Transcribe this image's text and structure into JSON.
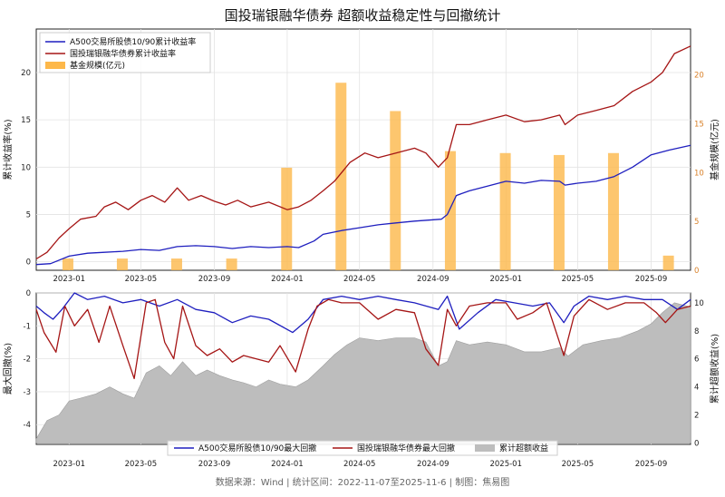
{
  "title": "国投瑞银融华债券 超额收益稳定性与回撤统计",
  "footer": "数据来源：Wind | 统计区间：2022-11-07至2025-11-6 | 制图：焦易图",
  "colors": {
    "blue": "#1f1fbf",
    "red": "#a51515",
    "orange": "#fdb84a",
    "gray": "#bdbdbd"
  },
  "chart_data": [
    {
      "type": "line",
      "panel": "top",
      "ylabel_left": "累计收益率(%)",
      "ylabel_right": "基金规模(亿元)",
      "xlim": [
        "2022-11-07",
        "2025-11-06"
      ],
      "x_ticks": [
        "2023-01",
        "2023-05",
        "2023-09",
        "2024-01",
        "2024-05",
        "2024-09",
        "2025-01",
        "2025-05",
        "2025-09"
      ],
      "ylim_left": [
        -0.9,
        24.6
      ],
      "yticks_left": [
        0,
        5,
        10,
        15,
        20
      ],
      "ylim_right": [
        0,
        24.7
      ],
      "yticks_right": [
        0,
        5,
        10,
        15,
        20
      ],
      "grid": true,
      "legend_position": "top-left",
      "series": [
        {
          "name": "A500交易所股债10/90累计收益率",
          "color": "#1f1fbf",
          "x": [
            "2022-11-07",
            "2022-12-01",
            "2023-01-01",
            "2023-02-01",
            "2023-03-01",
            "2023-04-01",
            "2023-05-01",
            "2023-06-01",
            "2023-07-01",
            "2023-08-01",
            "2023-09-01",
            "2023-10-01",
            "2023-11-01",
            "2023-12-01",
            "2024-01-01",
            "2024-01-20",
            "2024-02-15",
            "2024-03-01",
            "2024-04-01",
            "2024-05-01",
            "2024-06-01",
            "2024-07-01",
            "2024-08-01",
            "2024-09-15",
            "2024-09-25",
            "2024-10-10",
            "2024-11-01",
            "2024-12-01",
            "2025-01-01",
            "2025-02-01",
            "2025-03-01",
            "2025-04-01",
            "2025-04-10",
            "2025-05-01",
            "2025-06-01",
            "2025-07-01",
            "2025-08-01",
            "2025-09-01",
            "2025-10-01",
            "2025-11-06"
          ],
          "y": [
            -0.3,
            -0.2,
            0.6,
            0.9,
            1.0,
            1.1,
            1.3,
            1.2,
            1.6,
            1.7,
            1.6,
            1.4,
            1.6,
            1.5,
            1.6,
            1.5,
            2.2,
            2.9,
            3.3,
            3.6,
            3.9,
            4.1,
            4.3,
            4.5,
            5.0,
            7.0,
            7.5,
            8.0,
            8.5,
            8.3,
            8.6,
            8.5,
            8.1,
            8.3,
            8.5,
            9.0,
            10.0,
            11.3,
            11.8,
            12.3
          ]
        },
        {
          "name": "国投瑞银融华债券累计收益率",
          "color": "#a51515",
          "x": [
            "2022-11-07",
            "2022-11-25",
            "2022-12-15",
            "2023-01-01",
            "2023-01-20",
            "2023-02-15",
            "2023-03-01",
            "2023-03-20",
            "2023-04-10",
            "2023-05-01",
            "2023-05-20",
            "2023-06-10",
            "2023-07-01",
            "2023-07-20",
            "2023-08-10",
            "2023-09-01",
            "2023-09-20",
            "2023-10-10",
            "2023-11-01",
            "2023-12-01",
            "2024-01-01",
            "2024-01-20",
            "2024-02-10",
            "2024-03-01",
            "2024-03-20",
            "2024-04-15",
            "2024-05-10",
            "2024-06-01",
            "2024-07-01",
            "2024-08-01",
            "2024-08-20",
            "2024-09-10",
            "2024-09-25",
            "2024-10-10",
            "2024-11-01",
            "2024-12-01",
            "2025-01-01",
            "2025-02-01",
            "2025-03-01",
            "2025-04-01",
            "2025-04-10",
            "2025-05-01",
            "2025-06-01",
            "2025-07-01",
            "2025-08-01",
            "2025-09-01",
            "2025-09-20",
            "2025-10-10",
            "2025-11-06"
          ],
          "y": [
            0.3,
            1.0,
            2.5,
            3.5,
            4.5,
            4.8,
            5.8,
            6.3,
            5.5,
            6.5,
            7.0,
            6.3,
            7.8,
            6.5,
            7.0,
            6.4,
            6.0,
            6.5,
            5.8,
            6.3,
            5.5,
            5.8,
            6.5,
            7.5,
            8.5,
            10.5,
            11.5,
            11.0,
            11.5,
            12.0,
            11.5,
            10.0,
            11.0,
            14.5,
            14.5,
            15.0,
            15.5,
            14.8,
            15.0,
            15.5,
            14.5,
            15.5,
            16.0,
            16.5,
            18.0,
            19.0,
            20.0,
            22.0,
            22.8
          ]
        }
      ],
      "bar_series": {
        "name": "基金规模(亿元)",
        "color": "#fdb84a",
        "x": [
          "2022-12-30",
          "2023-03-31",
          "2023-06-30",
          "2023-09-30",
          "2023-12-31",
          "2024-03-31",
          "2024-06-30",
          "2024-09-30",
          "2024-12-31",
          "2025-03-31",
          "2025-06-30",
          "2025-09-30"
        ],
        "values": [
          1.2,
          1.2,
          1.2,
          1.2,
          10.5,
          19.2,
          16.3,
          12.2,
          12.0,
          11.8,
          12.0,
          1.5
        ]
      }
    },
    {
      "type": "line",
      "panel": "bottom",
      "ylabel_left": "最大回撤(%)",
      "ylabel_right": "累计超额收益(%)",
      "xlim": [
        "2022-11-07",
        "2025-11-06"
      ],
      "x_ticks": [
        "2023-01",
        "2023-05",
        "2023-09",
        "2024-01",
        "2024-05",
        "2024-09",
        "2025-01",
        "2025-05",
        "2025-09"
      ],
      "ylim_left": [
        -4.6,
        0
      ],
      "yticks_left": [
        0,
        -1,
        -2,
        -3,
        -4
      ],
      "ylim_right": [
        -0.1,
        10.7
      ],
      "yticks_right": [
        0,
        2,
        4,
        6,
        8,
        10
      ],
      "grid": true,
      "legend_position": "bottom-center",
      "series": [
        {
          "name": "A500交易所股债10/90最大回撤",
          "color": "#1f1fbf",
          "x": [
            "2022-11-07",
            "2022-11-20",
            "2022-12-05",
            "2022-12-20",
            "2023-01-10",
            "2023-02-01",
            "2023-03-01",
            "2023-04-01",
            "2023-05-01",
            "2023-06-01",
            "2023-07-01",
            "2023-08-01",
            "2023-09-01",
            "2023-10-01",
            "2023-11-01",
            "2023-12-01",
            "2024-01-10",
            "2024-02-05",
            "2024-03-01",
            "2024-04-01",
            "2024-05-01",
            "2024-06-01",
            "2024-07-01",
            "2024-08-01",
            "2024-09-10",
            "2024-09-25",
            "2024-10-15",
            "2024-11-15",
            "2024-12-15",
            "2025-01-15",
            "2025-02-15",
            "2025-03-15",
            "2025-04-08",
            "2025-04-25",
            "2025-05-20",
            "2025-06-20",
            "2025-07-20",
            "2025-08-20",
            "2025-09-20",
            "2025-10-15",
            "2025-11-06"
          ],
          "y": [
            -0.4,
            -0.6,
            -0.8,
            -0.5,
            0,
            -0.2,
            -0.1,
            -0.3,
            -0.2,
            -0.4,
            -0.2,
            -0.5,
            -0.6,
            -0.9,
            -0.7,
            -0.8,
            -1.2,
            -0.8,
            -0.2,
            -0.1,
            -0.2,
            -0.1,
            -0.2,
            -0.3,
            -0.5,
            -0.1,
            -1.1,
            -0.6,
            -0.2,
            -0.3,
            -0.4,
            -0.3,
            -0.9,
            -0.4,
            -0.1,
            -0.2,
            -0.1,
            -0.2,
            -0.2,
            -0.5,
            -0.2
          ]
        },
        {
          "name": "国投瑞银融华债券最大回撤",
          "color": "#a51515",
          "x": [
            "2022-11-07",
            "2022-11-20",
            "2022-12-10",
            "2022-12-25",
            "2023-01-10",
            "2023-02-01",
            "2023-02-20",
            "2023-03-10",
            "2023-04-01",
            "2023-04-20",
            "2023-05-10",
            "2023-05-25",
            "2023-06-10",
            "2023-06-25",
            "2023-07-10",
            "2023-08-01",
            "2023-08-20",
            "2023-09-10",
            "2023-10-01",
            "2023-10-20",
            "2023-11-10",
            "2023-12-01",
            "2023-12-20",
            "2024-01-15",
            "2024-02-05",
            "2024-02-20",
            "2024-03-10",
            "2024-04-01",
            "2024-05-01",
            "2024-06-01",
            "2024-07-01",
            "2024-08-01",
            "2024-08-20",
            "2024-09-10",
            "2024-09-25",
            "2024-10-10",
            "2024-11-01",
            "2024-12-01",
            "2025-01-01",
            "2025-01-20",
            "2025-02-15",
            "2025-03-10",
            "2025-04-08",
            "2025-04-25",
            "2025-05-20",
            "2025-06-20",
            "2025-07-20",
            "2025-08-20",
            "2025-09-10",
            "2025-09-25",
            "2025-10-15",
            "2025-11-06"
          ],
          "y": [
            -0.5,
            -1.2,
            -1.8,
            -0.4,
            -1.0,
            -0.5,
            -1.5,
            -0.4,
            -1.6,
            -2.6,
            -0.3,
            -0.2,
            -1.5,
            -2.0,
            -0.4,
            -1.6,
            -1.9,
            -1.7,
            -2.1,
            -1.9,
            -2.0,
            -2.1,
            -1.6,
            -2.4,
            -1.1,
            -0.4,
            -0.2,
            -0.3,
            -0.3,
            -0.8,
            -0.5,
            -0.6,
            -1.7,
            -2.2,
            -0.5,
            -1.0,
            -0.4,
            -0.3,
            -0.3,
            -0.8,
            -0.6,
            -0.3,
            -1.9,
            -0.7,
            -0.2,
            -0.5,
            -0.3,
            -0.3,
            -0.6,
            -0.9,
            -0.5,
            -0.4
          ]
        }
      ],
      "area_series": {
        "name": "累计超额收益",
        "color": "#bdbdbd",
        "x": [
          "2022-11-07",
          "2022-11-25",
          "2022-12-15",
          "2023-01-01",
          "2023-01-20",
          "2023-02-15",
          "2023-03-10",
          "2023-04-01",
          "2023-04-20",
          "2023-05-10",
          "2023-06-01",
          "2023-06-20",
          "2023-07-10",
          "2023-08-01",
          "2023-08-20",
          "2023-09-10",
          "2023-10-01",
          "2023-10-20",
          "2023-11-10",
          "2023-12-01",
          "2023-12-20",
          "2024-01-15",
          "2024-02-05",
          "2024-03-01",
          "2024-03-20",
          "2024-04-10",
          "2024-05-01",
          "2024-06-01",
          "2024-07-01",
          "2024-08-01",
          "2024-08-20",
          "2024-09-10",
          "2024-09-25",
          "2024-10-10",
          "2024-11-01",
          "2024-12-01",
          "2025-01-01",
          "2025-02-01",
          "2025-03-01",
          "2025-04-01",
          "2025-04-15",
          "2025-05-10",
          "2025-06-10",
          "2025-07-10",
          "2025-08-10",
          "2025-09-01",
          "2025-09-20",
          "2025-10-10",
          "2025-11-06"
        ],
        "values": [
          0.3,
          1.6,
          2.0,
          3.0,
          3.2,
          3.5,
          4.0,
          3.5,
          3.2,
          5.0,
          5.5,
          4.8,
          5.8,
          4.8,
          5.2,
          4.8,
          4.5,
          4.3,
          4.0,
          4.5,
          4.2,
          4.0,
          4.5,
          5.5,
          6.3,
          7.0,
          7.5,
          7.3,
          7.5,
          7.5,
          7.2,
          5.5,
          5.8,
          7.3,
          7.0,
          7.2,
          7.0,
          6.5,
          6.5,
          6.8,
          6.2,
          7.0,
          7.3,
          7.5,
          8.0,
          8.5,
          9.3,
          10.0,
          9.7
        ]
      }
    }
  ]
}
